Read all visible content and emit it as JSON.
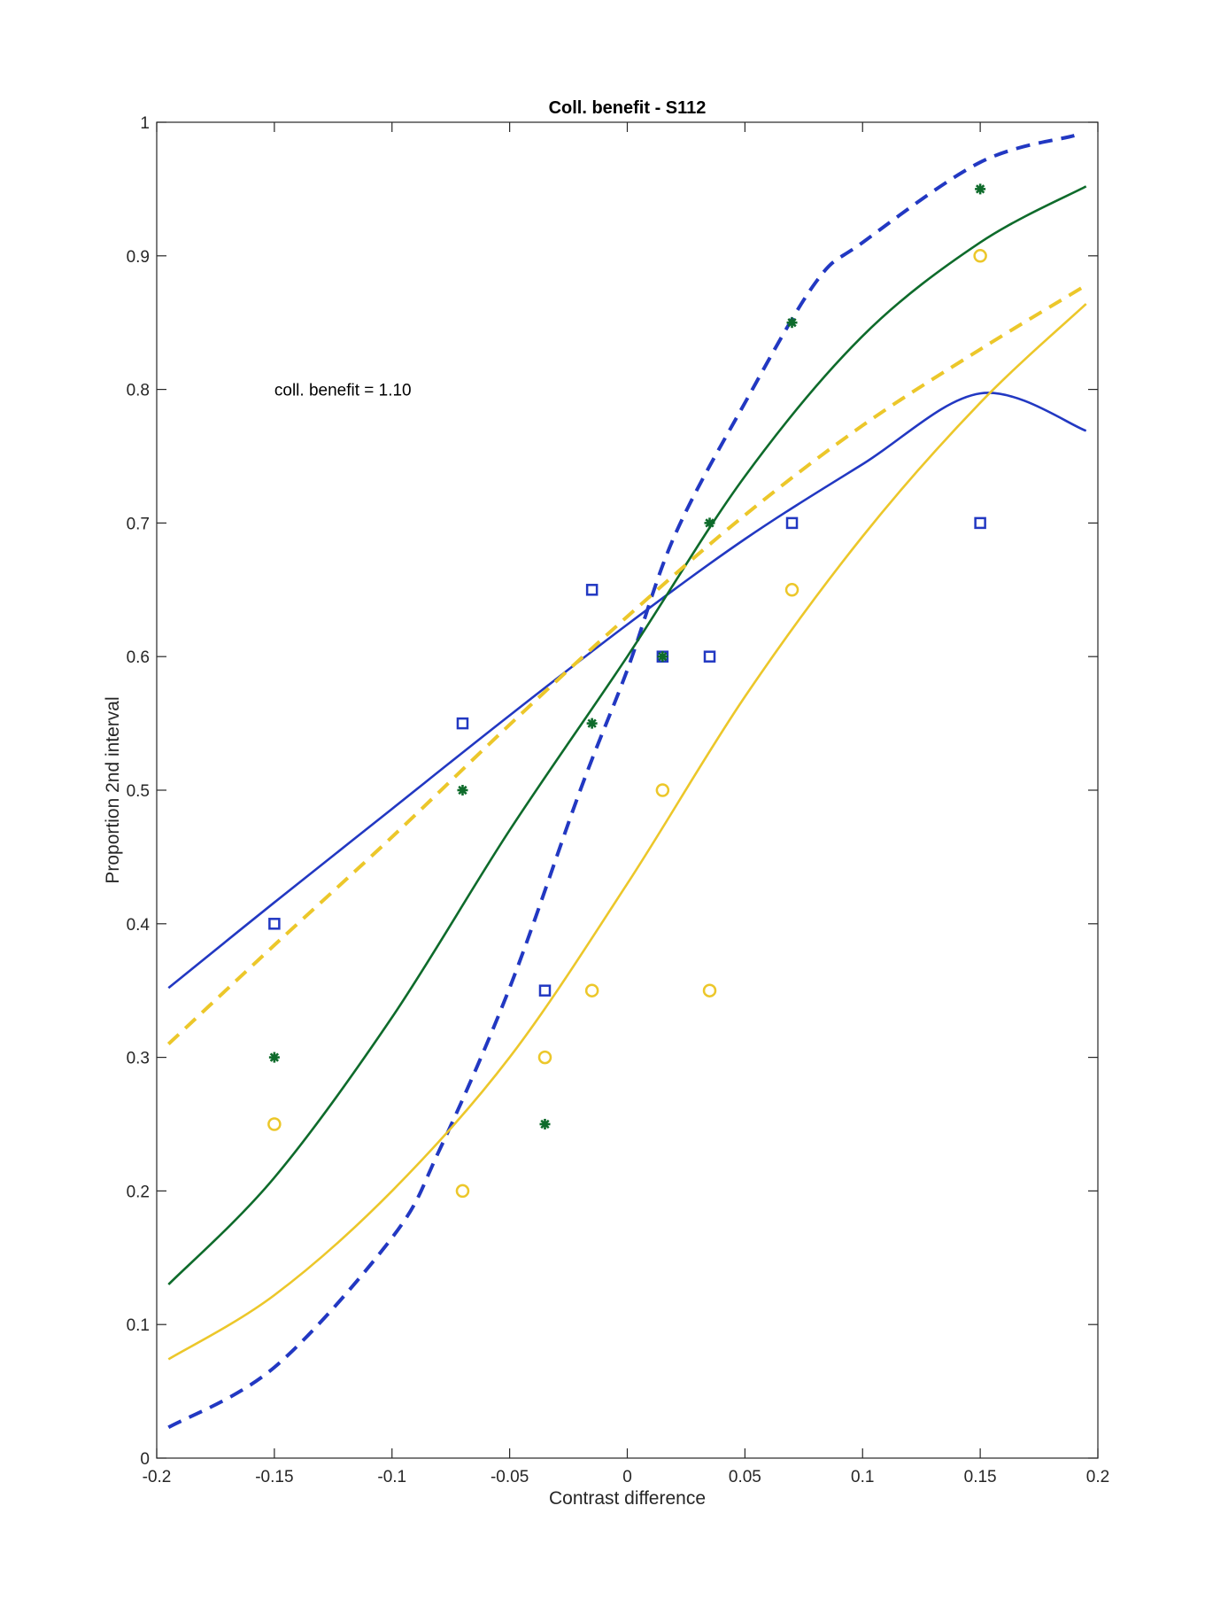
{
  "chart_data": {
    "type": "scatter",
    "title": "Coll. benefit - S112",
    "xlabel": "Contrast difference",
    "ylabel": "Proportion 2nd interval",
    "xlim": [
      -0.2,
      0.2
    ],
    "ylim": [
      0,
      1
    ],
    "xticks": [
      "-0.2",
      "-0.15",
      "-0.1",
      "-0.05",
      "0",
      "0.05",
      "0.1",
      "0.15",
      "0.2"
    ],
    "yticks": [
      "0",
      "0.1",
      "0.2",
      "0.3",
      "0.4",
      "0.5",
      "0.6",
      "0.7",
      "0.8",
      "0.9",
      "1"
    ],
    "grid": false,
    "annotation": {
      "text": "coll. benefit = 1.10",
      "x": -0.15,
      "y": 0.8
    },
    "series": [
      {
        "marker": "square",
        "color": "#2238c2",
        "x": [
          -0.15,
          -0.07,
          -0.035,
          -0.015,
          0.015,
          0.035,
          0.07,
          0.15
        ],
        "y": [
          0.4,
          0.55,
          0.35,
          0.65,
          0.6,
          0.6,
          0.7,
          0.7
        ]
      },
      {
        "marker": "circle",
        "color": "#ecc72a",
        "x": [
          -0.15,
          -0.07,
          -0.035,
          -0.015,
          0.015,
          0.035,
          0.07,
          0.15
        ],
        "y": [
          0.25,
          0.2,
          0.3,
          0.35,
          0.5,
          0.35,
          0.65,
          0.9
        ]
      },
      {
        "marker": "asterisk",
        "color": "#0e6b2b",
        "x": [
          -0.15,
          -0.07,
          -0.035,
          -0.015,
          0.015,
          0.035,
          0.07,
          0.15
        ],
        "y": [
          0.3,
          0.5,
          0.25,
          0.55,
          0.6,
          0.7,
          0.85,
          0.95
        ]
      }
    ],
    "fit_curves": [
      {
        "style": "solid",
        "color": "#2238c2",
        "x": [
          -0.195,
          -0.15,
          -0.1,
          -0.05,
          0,
          0.05,
          0.1,
          0.15,
          0.195
        ],
        "y": [
          0.352,
          0.416,
          0.486,
          0.556,
          0.624,
          0.688,
          0.744,
          0.797,
          0.769
        ]
      },
      {
        "style": "dashed",
        "color": "#2238c2",
        "x": [
          -0.195,
          -0.15,
          -0.1,
          -0.08,
          -0.05,
          -0.02,
          0,
          0.02,
          0.05,
          0.08,
          0.1,
          0.15,
          0.19
        ],
        "y": [
          0.023,
          0.068,
          0.165,
          0.23,
          0.352,
          0.5,
          0.59,
          0.69,
          0.79,
          0.88,
          0.91,
          0.97,
          0.99
        ]
      },
      {
        "style": "solid",
        "color": "#0e6b2b",
        "x": [
          -0.195,
          -0.15,
          -0.1,
          -0.05,
          0,
          0.05,
          0.1,
          0.15,
          0.195
        ],
        "y": [
          0.13,
          0.21,
          0.33,
          0.47,
          0.6,
          0.735,
          0.84,
          0.91,
          0.952
        ]
      },
      {
        "style": "dashed",
        "color": "#ecc72a",
        "x": [
          -0.195,
          -0.15,
          -0.1,
          -0.05,
          0,
          0.05,
          0.1,
          0.15,
          0.195
        ],
        "y": [
          0.31,
          0.384,
          0.465,
          0.549,
          0.63,
          0.706,
          0.773,
          0.83,
          0.878
        ]
      },
      {
        "style": "solid",
        "color": "#ecc72a",
        "x": [
          -0.195,
          -0.15,
          -0.1,
          -0.05,
          0,
          0.05,
          0.1,
          0.15,
          0.195
        ],
        "y": [
          0.074,
          0.122,
          0.2,
          0.3,
          0.43,
          0.57,
          0.69,
          0.79,
          0.864
        ]
      }
    ]
  }
}
